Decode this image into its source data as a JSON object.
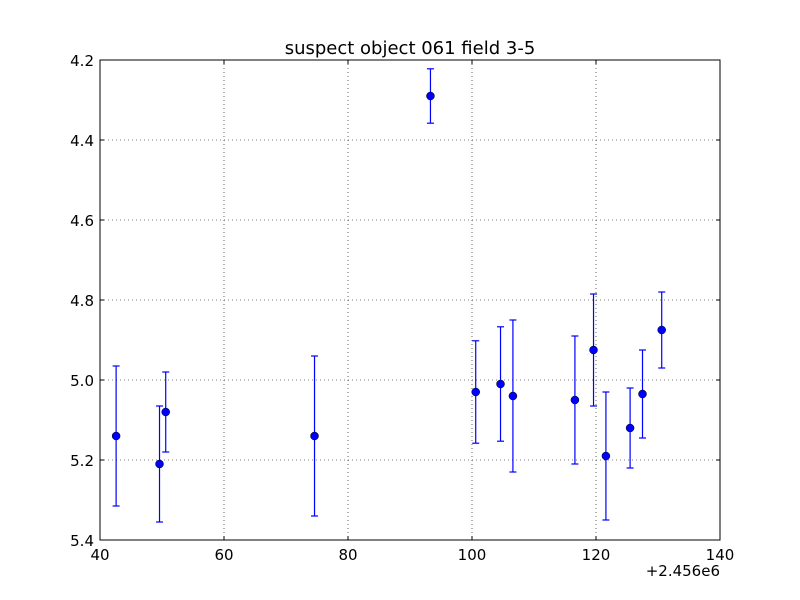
{
  "chart_data": {
    "type": "scatter",
    "title": "suspect object 061 field 3-5",
    "xlabel": "",
    "ylabel": "",
    "x_offset_label": "+2.456e6",
    "xlim": [
      40,
      140
    ],
    "ylim": [
      5.4,
      4.2
    ],
    "y_inverted": true,
    "grid": true,
    "x_ticks": [
      "40",
      "60",
      "80",
      "100",
      "120",
      "140"
    ],
    "y_ticks": [
      "4.2",
      "4.4",
      "4.6",
      "4.8",
      "5.0",
      "5.2",
      "5.4"
    ],
    "marker_color": "#0000ff",
    "points": [
      {
        "x": 42.6,
        "y": 5.14,
        "err": 0.175
      },
      {
        "x": 49.6,
        "y": 5.21,
        "err": 0.145
      },
      {
        "x": 50.6,
        "y": 5.08,
        "err": 0.1
      },
      {
        "x": 74.6,
        "y": 5.14,
        "err": 0.2
      },
      {
        "x": 93.3,
        "y": 4.29,
        "err": 0.068
      },
      {
        "x": 100.6,
        "y": 5.03,
        "err": 0.128
      },
      {
        "x": 104.6,
        "y": 5.01,
        "err": 0.143
      },
      {
        "x": 106.6,
        "y": 5.04,
        "err": 0.19
      },
      {
        "x": 116.6,
        "y": 5.05,
        "err": 0.16
      },
      {
        "x": 119.6,
        "y": 4.925,
        "err": 0.14
      },
      {
        "x": 121.6,
        "y": 5.19,
        "err": 0.16
      },
      {
        "x": 125.5,
        "y": 5.12,
        "err": 0.1
      },
      {
        "x": 127.5,
        "y": 5.035,
        "err": 0.11
      },
      {
        "x": 130.6,
        "y": 4.875,
        "err": 0.095
      }
    ]
  }
}
